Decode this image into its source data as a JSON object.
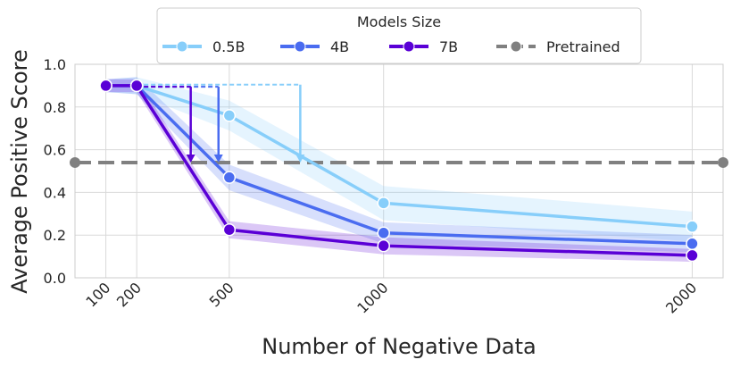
{
  "chart_data": {
    "type": "line",
    "xlabel": "Number of Negative Data",
    "ylabel": "Average Positive Score",
    "x_ticks": [
      100,
      200,
      500,
      1000,
      2000
    ],
    "xlim": [
      0,
      2100
    ],
    "y_ticks": [
      0.0,
      0.2,
      0.4,
      0.6,
      0.8,
      1.0
    ],
    "y_tick_labels": [
      "0.0",
      "0.2",
      "0.4",
      "0.6",
      "0.8",
      "1.0"
    ],
    "ylim": [
      0.0,
      1.0
    ],
    "grid": true,
    "legend": {
      "title": "Models Size",
      "placement": "top-center"
    },
    "series": [
      {
        "name": "0.5B",
        "color": "#87CEFA",
        "x": [
          100,
          200,
          500,
          1000,
          2000
        ],
        "values": [
          0.9,
          0.9,
          0.76,
          0.35,
          0.24
        ],
        "band": [
          0.03,
          0.04,
          0.07,
          0.08,
          0.07
        ]
      },
      {
        "name": "4B",
        "color": "#4A6CF0",
        "x": [
          100,
          200,
          500,
          1000,
          2000
        ],
        "values": [
          0.9,
          0.9,
          0.47,
          0.21,
          0.16
        ],
        "band": [
          0.03,
          0.04,
          0.06,
          0.05,
          0.04
        ]
      },
      {
        "name": "7B",
        "color": "#5A00D6",
        "x": [
          100,
          200,
          500,
          1000,
          2000
        ],
        "values": [
          0.9,
          0.9,
          0.225,
          0.15,
          0.105
        ],
        "band": [
          0.03,
          0.03,
          0.04,
          0.04,
          0.03
        ]
      }
    ],
    "reference": {
      "name": "Pretrained",
      "value": 0.54,
      "color": "#808080"
    },
    "annotations": [
      {
        "series": "0.5B",
        "x_start": 200,
        "x_end": 730,
        "y_from": 0.905,
        "y_to": 0.54
      },
      {
        "series": "4B",
        "x_start": 200,
        "x_end": 465,
        "y_from": 0.895,
        "y_to": 0.54
      },
      {
        "series": "7B",
        "x_start": 200,
        "x_end": 375,
        "y_from": 0.895,
        "y_to": 0.54
      }
    ]
  }
}
